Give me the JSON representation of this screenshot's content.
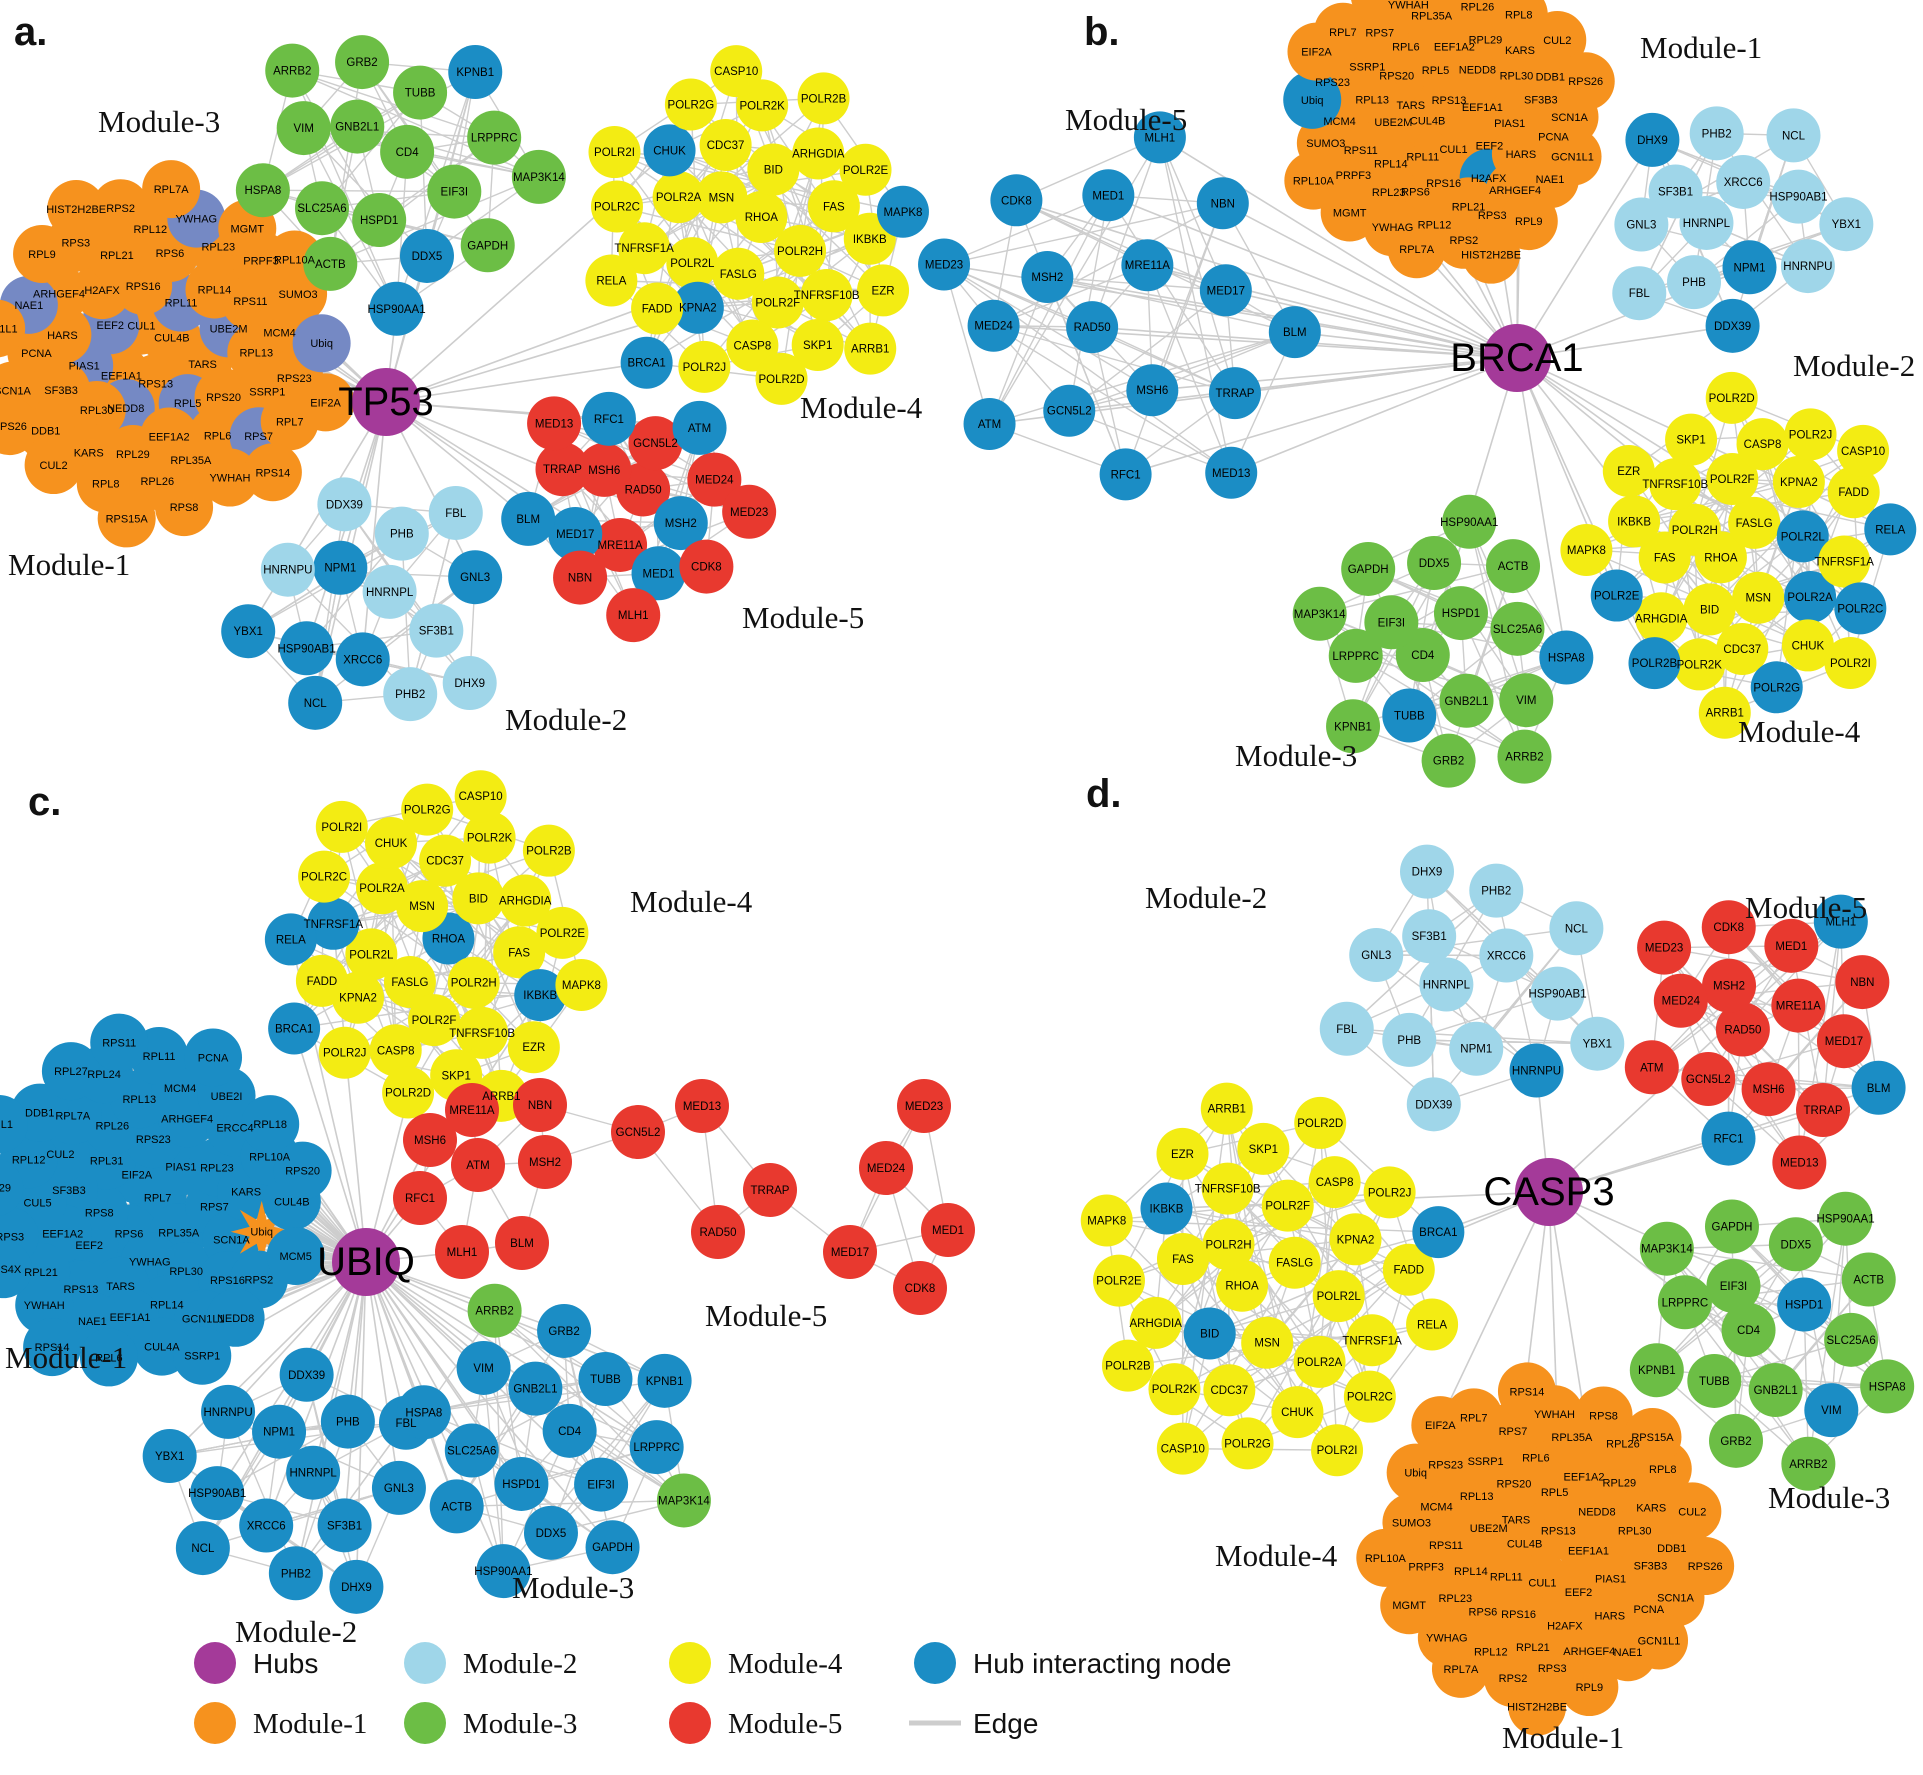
{
  "colors": {
    "hub": "#A43A99",
    "module1": "#F6921E",
    "module2": "#9FD6E9",
    "module3": "#6CBE45",
    "module4": "#F3EC13",
    "module5": "#E8392F",
    "hub_interacting": "#1B8DC5",
    "module1_interacting": "#7589C4",
    "edge": "#CDCDCD",
    "label": "#000000"
  },
  "gene_sets": {
    "module1": [
      "CUL4B",
      "RPS13",
      "CUL1",
      "TARS",
      "EEF1A1",
      "RPL11",
      "RPL5",
      "EEF2",
      "UBE2M",
      "NEDD8",
      "RPS16",
      "RPS20",
      "PIAS1",
      "RPL14",
      "EEF1A2",
      "H2AFX",
      "RPL13",
      "RPL30",
      "RPS6",
      "RPL6",
      "HARS",
      "RPS11",
      "RPL29",
      "RPL21",
      "SSRP1",
      "SF3B3",
      "RPL23",
      "RPL35A",
      "ARHGEF4",
      "MCM4",
      "KARS",
      "RPL12",
      "RPS7",
      "PCNA",
      "PRPF3",
      "RPL26",
      "RPS3",
      "RPS23",
      "DDB1",
      "YWHAG",
      "YWHAH",
      "NAE1",
      "SUMO3",
      "RPL8",
      "RPS2",
      "RPL7",
      "SCN1A",
      "MGMT",
      "RPS8",
      "RPL9",
      "Ubiq",
      "CUL2",
      "RPL7A",
      "RPS14",
      "GCN1L1",
      "RPL10A",
      "RPS15A",
      "HIST2H2BE",
      "EIF2A",
      "RPS26"
    ],
    "module1_ubiq": [
      "RPL7",
      "RPS6",
      "EIF2A",
      "RPL35A",
      "RPS8",
      "PIAS1",
      "YWHAG",
      "RPL31",
      "RPS7",
      "EEF2",
      "RPS23",
      "RPL30",
      "SF3B3",
      "RPL23",
      "TARS",
      "RPL26",
      "SCN1A",
      "EEF1A2",
      "ARHGEF4",
      "RPL14",
      "CUL2",
      "KARS",
      "RPS13",
      "RPL13",
      "RPS16",
      "CUL5",
      "ERCC4",
      "EEF1A1",
      "RPL7A",
      "Ubiq",
      "RPL21",
      "MCM4",
      "GCN1L1",
      "RPL12",
      "RPL10A",
      "NAE1",
      "RPL24",
      "RPS2",
      "RPS3",
      "UBE2I",
      "CUL4A",
      "DDB1",
      "CUL4B",
      "YWHAH",
      "RPL11",
      "NEDD8",
      "RPL29",
      "RPL18",
      "RPL6",
      "RPL27",
      "MCM5",
      "RPS4X",
      "PCNA",
      "SSRP1",
      "CUL1",
      "RPS20",
      "RPS14",
      "RPS11"
    ],
    "module2": [
      "HNRNPL",
      "XRCC6",
      "NPM1",
      "SF3B1",
      "HSP90AB1",
      "PHB",
      "PHB2",
      "HNRNPU",
      "GNL3",
      "NCL",
      "DDX39",
      "DHX9",
      "YBX1",
      "FBL"
    ],
    "module3": [
      "CD4",
      "HSPD1",
      "GNB2L1",
      "EIF3I",
      "SLC25A6",
      "TUBB",
      "DDX5",
      "VIM",
      "LRPPRC",
      "ACTB",
      "GRB2",
      "GAPDH",
      "HSPA8",
      "KPNB1",
      "HSP90AA1",
      "ARRB2",
      "MAP3K14"
    ],
    "module4": [
      "RHOA",
      "FASLG",
      "MSN",
      "POLR2H",
      "POLR2L",
      "BID",
      "POLR2F",
      "POLR2A",
      "FAS",
      "KPNA2",
      "CDC37",
      "TNFRSF10B",
      "TNFRSF1A",
      "ARHGDIA",
      "CASP8",
      "CHUK",
      "IKBKB",
      "FADD",
      "POLR2K",
      "SKP1",
      "POLR2C",
      "POLR2E",
      "POLR2J",
      "POLR2G",
      "EZR",
      "RELA",
      "POLR2B",
      "POLR2D",
      "POLR2I",
      "MAPK8",
      "BRCA1",
      "CASP10",
      "ARRB1"
    ],
    "module5": [
      "RAD50",
      "MRE11A",
      "MSH6",
      "MSH2",
      "MED17",
      "GCN5L2",
      "MED1",
      "TRRAP",
      "MED24",
      "NBN",
      "RFC1",
      "CDK8",
      "BLM",
      "ATM",
      "MLH1",
      "MED13",
      "MED23"
    ]
  },
  "panels": [
    {
      "id": "a",
      "letter": "a.",
      "hub": {
        "label": "TP53"
      },
      "modules": [
        {
          "key": "m1",
          "label": "Module-1",
          "genes": "module1",
          "base": "module1",
          "dense": true,
          "highlight": {
            "color": "module1_interacting",
            "genes": [
              "RPL11",
              "RPL5",
              "EEF2",
              "UBE2M",
              "NEDD8",
              "PIAS1",
              "RPS7",
              "NAE1",
              "Ubiq",
              "YWHAG"
            ]
          },
          "hub_links": [
            "H2AFX",
            "MCM4",
            "RPS3",
            "RPS2",
            "RPL8"
          ]
        },
        {
          "key": "m2",
          "label": "Module-2",
          "genes": "module2",
          "base": "module2",
          "highlight": {
            "color": "hub_interacting",
            "genes": [
              "XRCC6",
              "NPM1",
              "HSP90AB1",
              "GNL3",
              "NCL",
              "YBX1"
            ]
          }
        },
        {
          "key": "m3",
          "label": "Module-3",
          "genes": "module3",
          "base": "module3",
          "highlight": {
            "color": "hub_interacting",
            "genes": [
              "DDX5",
              "KPNB1",
              "HSP90AA1"
            ]
          }
        },
        {
          "key": "m4",
          "label": "Module-4",
          "genes": "module4",
          "base": "module4",
          "highlight": {
            "color": "hub_interacting",
            "genes": [
              "KPNA2",
              "CHUK",
              "MAPK8",
              "BRCA1"
            ]
          }
        },
        {
          "key": "m5",
          "label": "Module-5",
          "genes": "module5",
          "base": "module5",
          "highlight": {
            "color": "hub_interacting",
            "genes": [
              "MSH2",
              "MED17",
              "MED1",
              "RFC1",
              "BLM",
              "ATM"
            ]
          }
        }
      ]
    },
    {
      "id": "b",
      "letter": "b.",
      "hub": {
        "label": "BRCA1"
      },
      "modules": [
        {
          "key": "m1",
          "label": "Module-1",
          "genes": "module1",
          "base": "module1",
          "dense": true,
          "highlight": {
            "color": "hub_interacting",
            "genes": [
              "H2AFX",
              "Ubiq"
            ]
          },
          "hub_links": [
            "TARS",
            "SUMO3",
            "UBE2M",
            "RPL8",
            "HARS"
          ]
        },
        {
          "key": "m2",
          "label": "Module-2",
          "genes": "module2",
          "base": "module2",
          "highlight": {
            "color": "hub_interacting",
            "genes": [
              "NPM1",
              "DHX9",
              "DDX39"
            ]
          }
        },
        {
          "key": "m3",
          "label": "Module-3",
          "genes": "module3",
          "base": "module3",
          "highlight": {
            "color": "hub_interacting",
            "genes": [
              "TUBB",
              "HSPA8"
            ]
          }
        },
        {
          "key": "m4",
          "label": "Module-4",
          "genes": "module4",
          "base": "module4",
          "exclude": [
            "BRCA1"
          ],
          "highlight": {
            "color": "hub_interacting",
            "genes": [
              "POLR2A",
              "POLR2B",
              "POLR2C",
              "POLR2L",
              "POLR2E",
              "POLR2G",
              "RELA"
            ]
          }
        },
        {
          "key": "m5",
          "label": "Module-5",
          "genes": "module5",
          "base": "hub_interacting"
        }
      ]
    },
    {
      "id": "c",
      "letter": "c.",
      "hub": {
        "label": "UBIQ"
      },
      "modules": [
        {
          "key": "m1",
          "label": "Module-1",
          "genes": "module1_ubiq",
          "base": "hub_interacting",
          "dense": true,
          "star": "Ubiq",
          "highlight": {
            "color": "module1",
            "genes": [
              "Ubiq"
            ]
          }
        },
        {
          "key": "m2",
          "label": "Module-2",
          "genes": "module2",
          "base": "hub_interacting"
        },
        {
          "key": "m3",
          "label": "Module-3",
          "genes": "module3",
          "base": "hub_interacting",
          "highlight": {
            "color": "module3",
            "genes": [
              "ARRB2",
              "MAP3K14"
            ]
          }
        },
        {
          "key": "m4",
          "label": "Module-4",
          "genes": "module4",
          "base": "module4",
          "highlight": {
            "color": "hub_interacting",
            "genes": [
              "BRCA1",
              "IKBKB",
              "TNFRSF1A",
              "RELA",
              "RHOA"
            ]
          }
        },
        {
          "key": "m5",
          "label": "Module-5",
          "genes": "module5",
          "base": "module5",
          "hub_links": [
            "MSH6",
            "RFC1",
            "MLH1"
          ]
        }
      ]
    },
    {
      "id": "d",
      "letter": "d.",
      "hub": {
        "label": "CASP3"
      },
      "modules": [
        {
          "key": "m1",
          "label": "Module-1",
          "genes": "module1",
          "base": "module1",
          "dense": true,
          "hub_links": [
            "Ubiq",
            "H2AFX",
            "PIAS1",
            "RPS20"
          ]
        },
        {
          "key": "m2",
          "label": "Module-2",
          "genes": "module2",
          "base": "module2",
          "highlight": {
            "color": "hub_interacting",
            "genes": [
              "HNRNPU"
            ]
          }
        },
        {
          "key": "m3",
          "label": "Module-3",
          "genes": "module3",
          "base": "module3",
          "highlight": {
            "color": "hub_interacting",
            "genes": [
              "VIM",
              "HSPD1"
            ]
          }
        },
        {
          "key": "m4",
          "label": "Module-4",
          "genes": "module4",
          "base": "module4",
          "highlight": {
            "color": "hub_interacting",
            "genes": [
              "BRCA1",
              "IKBKB",
              "BID"
            ]
          }
        },
        {
          "key": "m5",
          "label": "Module-5",
          "genes": "module5",
          "base": "module5",
          "highlight": {
            "color": "hub_interacting",
            "genes": [
              "RFC1",
              "BLM",
              "MLH1"
            ]
          }
        }
      ]
    }
  ],
  "legend": {
    "items": [
      {
        "label": "Hubs",
        "color": "hub",
        "serif": false
      },
      {
        "label": "Module-1",
        "color": "module1",
        "serif": true
      },
      {
        "label": "Module-2",
        "color": "module2",
        "serif": true
      },
      {
        "label": "Module-3",
        "color": "module3",
        "serif": true
      },
      {
        "label": "Module-4",
        "color": "module4",
        "serif": true
      },
      {
        "label": "Module-5",
        "color": "module5",
        "serif": true
      },
      {
        "label": "Hub interacting node",
        "color": "hub_interacting",
        "serif": false
      },
      {
        "label": "Edge",
        "type": "edge",
        "serif": false
      }
    ]
  }
}
